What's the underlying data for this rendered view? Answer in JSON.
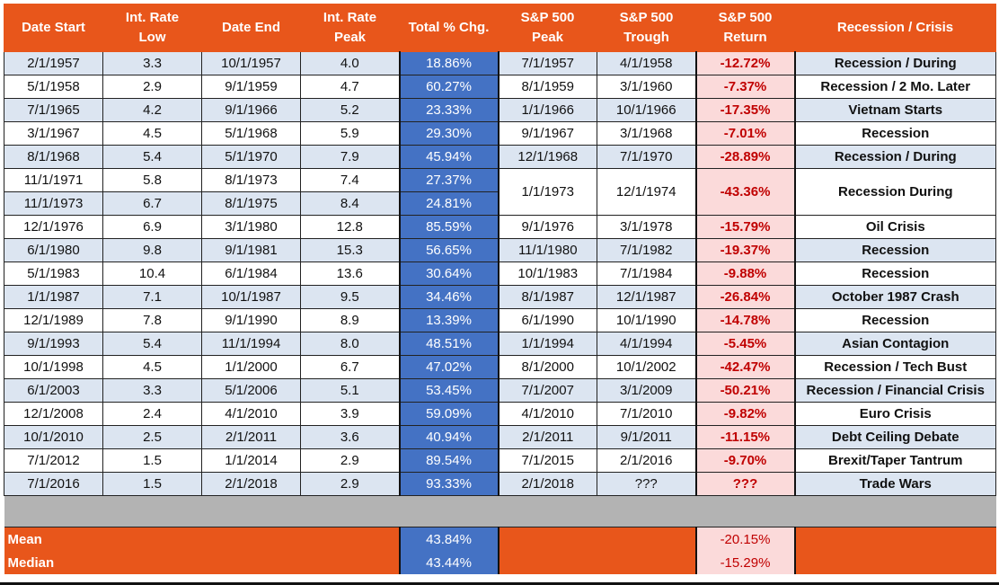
{
  "headers": [
    [
      "Date Start",
      ""
    ],
    [
      "Int. Rate",
      "Low"
    ],
    [
      "Date End",
      ""
    ],
    [
      "Int. Rate",
      "Peak"
    ],
    [
      "Total % Chg.",
      ""
    ],
    [
      "S&P 500",
      "Peak"
    ],
    [
      "S&P 500",
      "Trough"
    ],
    [
      "S&P 500",
      "Return"
    ],
    [
      "Recession / Crisis",
      ""
    ]
  ],
  "rows": [
    {
      "start": "2/1/1957",
      "low": "3.3",
      "end": "10/1/1957",
      "peak": "4.0",
      "chg": "18.86%",
      "sp_peak": "7/1/1957",
      "sp_trough": "4/1/1958",
      "ret": "-12.72%",
      "crisis": "Recession / During"
    },
    {
      "start": "5/1/1958",
      "low": "2.9",
      "end": "9/1/1959",
      "peak": "4.7",
      "chg": "60.27%",
      "sp_peak": "8/1/1959",
      "sp_trough": "3/1/1960",
      "ret": "-7.37%",
      "crisis": "Recession / 2 Mo. Later"
    },
    {
      "start": "7/1/1965",
      "low": "4.2",
      "end": "9/1/1966",
      "peak": "5.2",
      "chg": "23.33%",
      "sp_peak": "1/1/1966",
      "sp_trough": "10/1/1966",
      "ret": "-17.35%",
      "crisis": "Vietnam Starts"
    },
    {
      "start": "3/1/1967",
      "low": "4.5",
      "end": "5/1/1968",
      "peak": "5.9",
      "chg": "29.30%",
      "sp_peak": "9/1/1967",
      "sp_trough": "3/1/1968",
      "ret": "-7.01%",
      "crisis": "Recession"
    },
    {
      "start": "8/1/1968",
      "low": "5.4",
      "end": "5/1/1970",
      "peak": "7.9",
      "chg": "45.94%",
      "sp_peak": "12/1/1968",
      "sp_trough": "7/1/1970",
      "ret": "-28.89%",
      "crisis": "Recession / During"
    },
    {
      "start": "11/1/1971",
      "low": "5.8",
      "end": "8/1/1973",
      "peak": "7.4",
      "chg": "27.37%",
      "sp_peak": "1/1/1973",
      "sp_trough": "12/1/1974",
      "ret": "-43.36%",
      "crisis": "Recession During"
    },
    {
      "start": "11/1/1973",
      "low": "6.7",
      "end": "8/1/1975",
      "peak": "8.4",
      "chg": "24.81%"
    },
    {
      "start": "12/1/1976",
      "low": "6.9",
      "end": "3/1/1980",
      "peak": "12.8",
      "chg": "85.59%",
      "sp_peak": "9/1/1976",
      "sp_trough": "3/1/1978",
      "ret": "-15.79%",
      "crisis": "Oil Crisis"
    },
    {
      "start": "6/1/1980",
      "low": "9.8",
      "end": "9/1/1981",
      "peak": "15.3",
      "chg": "56.65%",
      "sp_peak": "11/1/1980",
      "sp_trough": "7/1/1982",
      "ret": "-19.37%",
      "crisis": "Recession"
    },
    {
      "start": "5/1/1983",
      "low": "10.4",
      "end": "6/1/1984",
      "peak": "13.6",
      "chg": "30.64%",
      "sp_peak": "10/1/1983",
      "sp_trough": "7/1/1984",
      "ret": "-9.88%",
      "crisis": "Recession"
    },
    {
      "start": "1/1/1987",
      "low": "7.1",
      "end": "10/1/1987",
      "peak": "9.5",
      "chg": "34.46%",
      "sp_peak": "8/1/1987",
      "sp_trough": "12/1/1987",
      "ret": "-26.84%",
      "crisis": "October 1987 Crash"
    },
    {
      "start": "12/1/1989",
      "low": "7.8",
      "end": "9/1/1990",
      "peak": "8.9",
      "chg": "13.39%",
      "sp_peak": "6/1/1990",
      "sp_trough": "10/1/1990",
      "ret": "-14.78%",
      "crisis": "Recession"
    },
    {
      "start": "9/1/1993",
      "low": "5.4",
      "end": "11/1/1994",
      "peak": "8.0",
      "chg": "48.51%",
      "sp_peak": "1/1/1994",
      "sp_trough": "4/1/1994",
      "ret": "-5.45%",
      "crisis": "Asian Contagion"
    },
    {
      "start": "10/1/1998",
      "low": "4.5",
      "end": "1/1/2000",
      "peak": "6.7",
      "chg": "47.02%",
      "sp_peak": "8/1/2000",
      "sp_trough": "10/1/2002",
      "ret": "-42.47%",
      "crisis": "Recession / Tech Bust"
    },
    {
      "start": "6/1/2003",
      "low": "3.3",
      "end": "5/1/2006",
      "peak": "5.1",
      "chg": "53.45%",
      "sp_peak": "7/1/2007",
      "sp_trough": "3/1/2009",
      "ret": "-50.21%",
      "crisis": "Recession / Financial Crisis"
    },
    {
      "start": "12/1/2008",
      "low": "2.4",
      "end": "4/1/2010",
      "peak": "3.9",
      "chg": "59.09%",
      "sp_peak": "4/1/2010",
      "sp_trough": "7/1/2010",
      "ret": "-9.82%",
      "crisis": "Euro Crisis"
    },
    {
      "start": "10/1/2010",
      "low": "2.5",
      "end": "2/1/2011",
      "peak": "3.6",
      "chg": "40.94%",
      "sp_peak": "2/1/2011",
      "sp_trough": "9/1/2011",
      "ret": "-11.15%",
      "crisis": "Debt Ceiling Debate"
    },
    {
      "start": "7/1/2012",
      "low": "1.5",
      "end": "1/1/2014",
      "peak": "2.9",
      "chg": "89.54%",
      "sp_peak": "7/1/2015",
      "sp_trough": "2/1/2016",
      "ret": "-9.70%",
      "crisis": "Brexit/Taper Tantrum"
    },
    {
      "start": "7/1/2016",
      "low": "1.5",
      "end": "2/1/2018",
      "peak": "2.9",
      "chg": "93.33%",
      "sp_peak": "2/1/2018",
      "sp_trough": "???",
      "ret": "???",
      "crisis": "Trade Wars"
    }
  ],
  "footer": {
    "mean_label": "Mean",
    "mean_chg": "43.84%",
    "mean_ret": "-20.15%",
    "median_label": "Median",
    "median_chg": "43.44%",
    "median_ret": "-15.29%"
  },
  "colors": {
    "header_bg": "#e8561b",
    "band_bg": "#dce5f1",
    "chg_bg": "#4472c4",
    "ret_bg": "#fbdada",
    "ret_text": "#c00000",
    "spacer_bg": "#b3b3b3"
  }
}
